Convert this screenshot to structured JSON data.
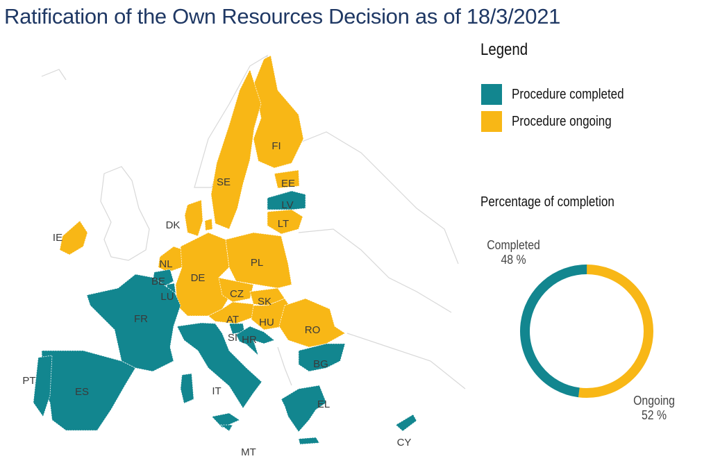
{
  "title": "Ratification of the Own Resources Decision as of 18/3/2021",
  "colors": {
    "completed": "#12868f",
    "ongoing": "#f8b716",
    "title": "#1f3864",
    "background_land": "#d8d8d8"
  },
  "legend": {
    "title": "Legend",
    "items": [
      {
        "label": "Procedure completed",
        "status": "completed"
      },
      {
        "label": "Procedure ongoing",
        "status": "ongoing"
      }
    ]
  },
  "countries": [
    {
      "code": "FI",
      "status": "ongoing"
    },
    {
      "code": "SE",
      "status": "ongoing"
    },
    {
      "code": "EE",
      "status": "ongoing"
    },
    {
      "code": "LV",
      "status": "completed"
    },
    {
      "code": "LT",
      "status": "ongoing"
    },
    {
      "code": "DK",
      "status": "ongoing"
    },
    {
      "code": "IE",
      "status": "ongoing"
    },
    {
      "code": "NL",
      "status": "ongoing"
    },
    {
      "code": "BE",
      "status": "completed"
    },
    {
      "code": "LU",
      "status": "completed"
    },
    {
      "code": "DE",
      "status": "ongoing"
    },
    {
      "code": "PL",
      "status": "ongoing"
    },
    {
      "code": "CZ",
      "status": "ongoing"
    },
    {
      "code": "SK",
      "status": "ongoing"
    },
    {
      "code": "AT",
      "status": "ongoing"
    },
    {
      "code": "HU",
      "status": "ongoing"
    },
    {
      "code": "RO",
      "status": "ongoing"
    },
    {
      "code": "SI",
      "status": "completed"
    },
    {
      "code": "HR",
      "status": "completed"
    },
    {
      "code": "BG",
      "status": "completed"
    },
    {
      "code": "FR",
      "status": "completed"
    },
    {
      "code": "IT",
      "status": "completed"
    },
    {
      "code": "ES",
      "status": "completed"
    },
    {
      "code": "PT",
      "status": "completed"
    },
    {
      "code": "EL",
      "status": "completed"
    },
    {
      "code": "MT",
      "status": "completed"
    },
    {
      "code": "CY",
      "status": "completed"
    }
  ],
  "completion": {
    "title": "Percentage of completion",
    "completed": {
      "label": "Completed",
      "value_text": "48 %",
      "percent": 48
    },
    "ongoing": {
      "label": "Ongoing",
      "value_text": "52 %",
      "percent": 52
    }
  }
}
